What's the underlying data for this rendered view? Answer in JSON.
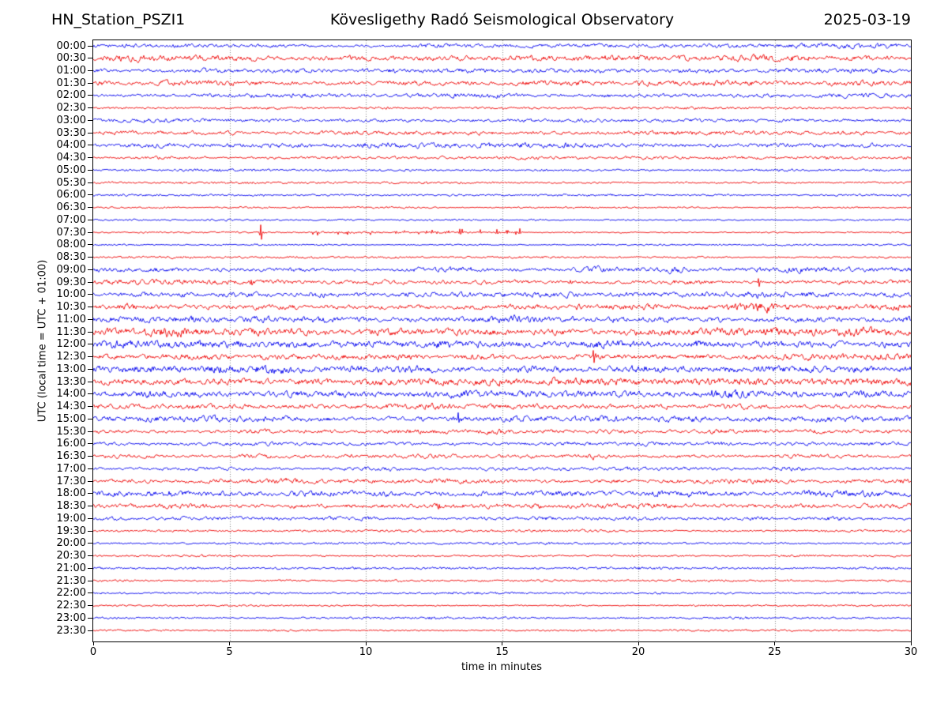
{
  "header": {
    "station": "HN_Station_PSZI1",
    "observatory": "Kövesligethy Radó Seismological Observatory",
    "date": "2025-03-19"
  },
  "axes": {
    "ylabel": "UTC (local time = UTC + 01:00)",
    "xlabel": "time in minutes",
    "x_tick_labels": [
      "0",
      "5",
      "10",
      "15",
      "20",
      "25",
      "30"
    ],
    "x_tick_minutes": [
      0,
      5,
      10,
      15,
      20,
      25,
      30
    ],
    "grid_minutes": [
      5,
      10,
      15,
      20,
      25
    ],
    "x_range_minutes": [
      0,
      30
    ]
  },
  "colors": {
    "blue": "#0000ee",
    "red": "#ee0000",
    "grid": "#8a8a8a",
    "frame": "#000000",
    "background": "#ffffff",
    "text": "#000000"
  },
  "chart_data": {
    "type": "line",
    "subtype": "helicorder-dayplot",
    "title": "Kövesligethy Radó Seismological Observatory",
    "station": "HN_Station_PSZI1",
    "date": "2025-03-19",
    "minutes_per_row": 30,
    "rows": [
      {
        "utc": "00:00",
        "color": "blue",
        "amp": 2.2
      },
      {
        "utc": "00:30",
        "color": "red",
        "amp": 3.2
      },
      {
        "utc": "01:00",
        "color": "blue",
        "amp": 2.6
      },
      {
        "utc": "01:30",
        "color": "red",
        "amp": 3.0
      },
      {
        "utc": "02:00",
        "color": "blue",
        "amp": 2.4
      },
      {
        "utc": "02:30",
        "color": "red",
        "amp": 1.6
      },
      {
        "utc": "03:00",
        "color": "blue",
        "amp": 2.0
      },
      {
        "utc": "03:30",
        "color": "red",
        "amp": 2.6
      },
      {
        "utc": "04:00",
        "color": "blue",
        "amp": 2.4
      },
      {
        "utc": "04:30",
        "color": "red",
        "amp": 1.8
      },
      {
        "utc": "05:00",
        "color": "blue",
        "amp": 1.4
      },
      {
        "utc": "05:30",
        "color": "red",
        "amp": 1.4
      },
      {
        "utc": "06:00",
        "color": "blue",
        "amp": 1.3
      },
      {
        "utc": "06:30",
        "color": "red",
        "amp": 1.1
      },
      {
        "utc": "07:00",
        "color": "blue",
        "amp": 1.1
      },
      {
        "utc": "07:30",
        "color": "red",
        "amp": 1.0
      },
      {
        "utc": "08:00",
        "color": "blue",
        "amp": 1.1
      },
      {
        "utc": "08:30",
        "color": "red",
        "amp": 1.4
      },
      {
        "utc": "09:00",
        "color": "blue",
        "amp": 2.8
      },
      {
        "utc": "09:30",
        "color": "red",
        "amp": 2.6
      },
      {
        "utc": "10:00",
        "color": "blue",
        "amp": 3.0
      },
      {
        "utc": "10:30",
        "color": "red",
        "amp": 3.0
      },
      {
        "utc": "11:00",
        "color": "blue",
        "amp": 3.4
      },
      {
        "utc": "11:30",
        "color": "red",
        "amp": 4.4
      },
      {
        "utc": "12:00",
        "color": "blue",
        "amp": 4.0
      },
      {
        "utc": "12:30",
        "color": "red",
        "amp": 3.4
      },
      {
        "utc": "13:00",
        "color": "blue",
        "amp": 4.4
      },
      {
        "utc": "13:30",
        "color": "red",
        "amp": 4.2
      },
      {
        "utc": "14:00",
        "color": "blue",
        "amp": 3.6
      },
      {
        "utc": "14:30",
        "color": "red",
        "amp": 3.0
      },
      {
        "utc": "15:00",
        "color": "blue",
        "amp": 3.2
      },
      {
        "utc": "15:30",
        "color": "red",
        "amp": 2.6
      },
      {
        "utc": "16:00",
        "color": "blue",
        "amp": 2.2
      },
      {
        "utc": "16:30",
        "color": "red",
        "amp": 2.2
      },
      {
        "utc": "17:00",
        "color": "blue",
        "amp": 2.0
      },
      {
        "utc": "17:30",
        "color": "red",
        "amp": 2.6
      },
      {
        "utc": "18:00",
        "color": "blue",
        "amp": 3.2
      },
      {
        "utc": "18:30",
        "color": "red",
        "amp": 2.6
      },
      {
        "utc": "19:00",
        "color": "blue",
        "amp": 2.2
      },
      {
        "utc": "19:30",
        "color": "red",
        "amp": 1.6
      },
      {
        "utc": "20:00",
        "color": "blue",
        "amp": 1.5
      },
      {
        "utc": "20:30",
        "color": "red",
        "amp": 1.3
      },
      {
        "utc": "21:00",
        "color": "blue",
        "amp": 1.5
      },
      {
        "utc": "21:30",
        "color": "red",
        "amp": 1.3
      },
      {
        "utc": "22:00",
        "color": "blue",
        "amp": 1.4
      },
      {
        "utc": "22:30",
        "color": "red",
        "amp": 1.1
      },
      {
        "utc": "23:00",
        "color": "blue",
        "amp": 1.4
      },
      {
        "utc": "23:30",
        "color": "red",
        "amp": 1.2
      }
    ],
    "events": [
      {
        "row": "00:00",
        "kind": "burst",
        "start": 25.5,
        "end": 29.5,
        "amp": 3.0
      },
      {
        "row": "04:00",
        "kind": "burst",
        "start": 9.5,
        "end": 19.0,
        "amp": 3.2
      },
      {
        "row": "07:30",
        "kind": "spike",
        "minute": 6.15,
        "amp": 9.5
      },
      {
        "row": "07:30",
        "kind": "spike_train",
        "start": 8.0,
        "end": 16.2,
        "amp": 3.2,
        "count": 30
      },
      {
        "row": "07:30",
        "kind": "spike",
        "minute": 14.8,
        "amp": 4.5
      },
      {
        "row": "08:00",
        "kind": "burst",
        "start": 8.3,
        "end": 8.9,
        "amp": 2.2
      },
      {
        "row": "09:00",
        "kind": "burst",
        "start": 20.8,
        "end": 22.0,
        "amp": 4.2
      },
      {
        "row": "09:00",
        "kind": "burst",
        "start": 25.4,
        "end": 26.2,
        "amp": 3.8
      },
      {
        "row": "09:30",
        "kind": "spike",
        "minute": 5.8,
        "amp": 4.5
      },
      {
        "row": "09:30",
        "kind": "spike",
        "minute": 17.5,
        "amp": 3.5
      },
      {
        "row": "09:30",
        "kind": "spike",
        "minute": 24.4,
        "amp": 5.0
      },
      {
        "row": "10:00",
        "kind": "burst",
        "start": 7.8,
        "end": 8.7,
        "amp": 4.8
      },
      {
        "row": "10:00",
        "kind": "burst",
        "start": 23.8,
        "end": 24.6,
        "amp": 4.0
      },
      {
        "row": "10:30",
        "kind": "burst",
        "start": 0.8,
        "end": 2.1,
        "amp": 4.6
      },
      {
        "row": "10:30",
        "kind": "burst",
        "start": 23.2,
        "end": 25.1,
        "amp": 6.0
      },
      {
        "row": "10:30",
        "kind": "burst",
        "start": 29.0,
        "end": 30.0,
        "amp": 4.5
      },
      {
        "row": "11:00",
        "kind": "burst",
        "start": 15.0,
        "end": 15.7,
        "amp": 5.5
      },
      {
        "row": "11:00",
        "kind": "burst",
        "start": 20.5,
        "end": 21.5,
        "amp": 4.5
      },
      {
        "row": "11:30",
        "kind": "burst",
        "start": 2.2,
        "end": 3.7,
        "amp": 6.5
      },
      {
        "row": "11:30",
        "kind": "burst",
        "start": 27.2,
        "end": 28.3,
        "amp": 5.0
      },
      {
        "row": "12:00",
        "kind": "burst",
        "start": 5.0,
        "end": 5.7,
        "amp": 5.5
      },
      {
        "row": "12:00",
        "kind": "burst",
        "start": 12.1,
        "end": 13.1,
        "amp": 4.8
      },
      {
        "row": "12:00",
        "kind": "burst",
        "start": 21.7,
        "end": 22.7,
        "amp": 4.6
      },
      {
        "row": "12:30",
        "kind": "spike",
        "minute": 18.35,
        "amp": 6.0
      },
      {
        "row": "12:30",
        "kind": "burst",
        "start": 28.4,
        "end": 30.0,
        "amp": 4.6
      },
      {
        "row": "13:00",
        "kind": "burst",
        "start": 0.3,
        "end": 1.4,
        "amp": 5.0
      },
      {
        "row": "13:30",
        "kind": "burst",
        "start": 0.0,
        "end": 0.7,
        "amp": 5.0
      },
      {
        "row": "13:30",
        "kind": "spike",
        "minute": 17.1,
        "amp": 4.5
      },
      {
        "row": "13:30",
        "kind": "burst",
        "start": 23.9,
        "end": 28.6,
        "amp": 5.0
      },
      {
        "row": "14:00",
        "kind": "burst",
        "start": 13.0,
        "end": 14.3,
        "amp": 4.4
      },
      {
        "row": "14:00",
        "kind": "spike",
        "minute": 22.7,
        "amp": 4.5
      },
      {
        "row": "14:30",
        "kind": "burst",
        "start": 11.8,
        "end": 13.2,
        "amp": 4.6
      },
      {
        "row": "15:00",
        "kind": "spike",
        "minute": 13.4,
        "amp": 5.5
      },
      {
        "row": "15:00",
        "kind": "burst",
        "start": 16.3,
        "end": 17.0,
        "amp": 4.4
      },
      {
        "row": "15:30",
        "kind": "burst",
        "start": 22.3,
        "end": 23.1,
        "amp": 3.8
      },
      {
        "row": "15:30",
        "kind": "burst",
        "start": 26.2,
        "end": 27.0,
        "amp": 3.8
      },
      {
        "row": "16:30",
        "kind": "burst",
        "start": 18.0,
        "end": 18.7,
        "amp": 3.2
      },
      {
        "row": "18:30",
        "kind": "spike",
        "minute": 12.7,
        "amp": 4.2
      },
      {
        "row": "19:00",
        "kind": "burst",
        "start": 25.8,
        "end": 27.9,
        "amp": 2.8
      }
    ]
  }
}
